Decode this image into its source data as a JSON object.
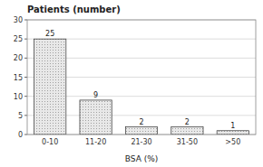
{
  "chart_data": {
    "type": "bar",
    "title": "Patients (number)",
    "xlabel": "BSA (%)",
    "categories": [
      "0-10",
      "11-20",
      "21-30",
      "31-50",
      ">50"
    ],
    "values": [
      25,
      9,
      2,
      2,
      1
    ],
    "color": "#e8e8e8",
    "ylim": [
      0,
      30
    ],
    "yticks": [
      0,
      5,
      10,
      15,
      20,
      25,
      30
    ],
    "grid": true,
    "data_labels": true
  }
}
